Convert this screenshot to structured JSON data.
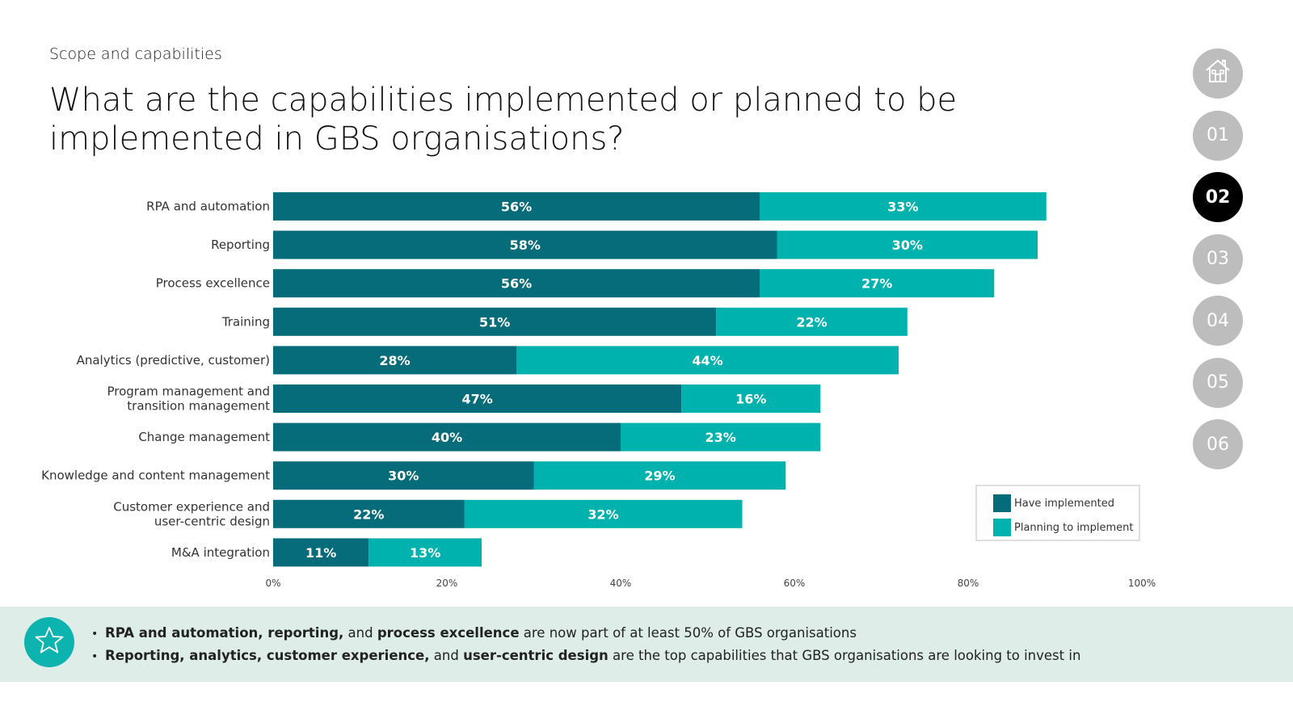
{
  "header": {
    "section": "Scope and capabilities",
    "title": "What are the capabilities implemented or planned to be implemented in GBS organisations?"
  },
  "nav": {
    "items": [
      "01",
      "02",
      "03",
      "04",
      "05",
      "06"
    ],
    "active": "02"
  },
  "colors": {
    "implemented": "#066c7a",
    "planning": "#00b2ad",
    "nav_inactive": "#bdbdbd",
    "nav_active": "#000000",
    "footer_bg": "#deede8"
  },
  "chart_data": {
    "type": "bar",
    "orientation": "horizontal",
    "stacked": true,
    "categories": [
      "RPA and automation",
      "Reporting",
      "Process excellence",
      "Training",
      "Analytics (predictive, customer)",
      "Program management and transition management",
      "Change management",
      "Knowledge and content management",
      "Customer experience and user-centric design",
      "M&A integration"
    ],
    "category_lines": [
      [
        "RPA and automation"
      ],
      [
        "Reporting"
      ],
      [
        "Process excellence"
      ],
      [
        "Training"
      ],
      [
        "Analytics (predictive, customer)"
      ],
      [
        "Program management and",
        "transition management"
      ],
      [
        "Change management"
      ],
      [
        "Knowledge and content management"
      ],
      [
        "Customer experience and",
        "user-centric design"
      ],
      [
        "M&A integration"
      ]
    ],
    "series": [
      {
        "name": "Have implemented",
        "values": [
          56,
          58,
          56,
          51,
          28,
          47,
          40,
          30,
          22,
          11
        ],
        "labels": [
          "56%",
          "58%",
          "56%",
          "51%",
          "28%",
          "47%",
          "40%",
          "30%",
          "22%",
          "11%"
        ]
      },
      {
        "name": "Planning to implement",
        "values": [
          33,
          30,
          27,
          22,
          44,
          16,
          23,
          29,
          32,
          13
        ],
        "labels": [
          "33%",
          "30%",
          "27%",
          "22%",
          "44%",
          "16%",
          "23%",
          "29%",
          "32%",
          "13%"
        ]
      }
    ],
    "xlim": [
      0,
      100
    ],
    "x_ticks": [
      "0%",
      "20%",
      "40%",
      "60%",
      "80%",
      "100%"
    ],
    "legend_position": "bottom-right",
    "grid": false
  },
  "footer": {
    "bullets": [
      [
        {
          "text": "RPA and automation, reporting,",
          "bold": true
        },
        {
          "text": " and ",
          "bold": false
        },
        {
          "text": "process excellence",
          "bold": true
        },
        {
          "text": " are now part of at least 50% of GBS organisations",
          "bold": false
        }
      ],
      [
        {
          "text": "Reporting, analytics, customer experience,",
          "bold": true
        },
        {
          "text": " and ",
          "bold": false
        },
        {
          "text": "user-centric design",
          "bold": true
        },
        {
          "text": " are the top capabilities that GBS organisations are looking to invest in",
          "bold": false
        }
      ]
    ]
  }
}
